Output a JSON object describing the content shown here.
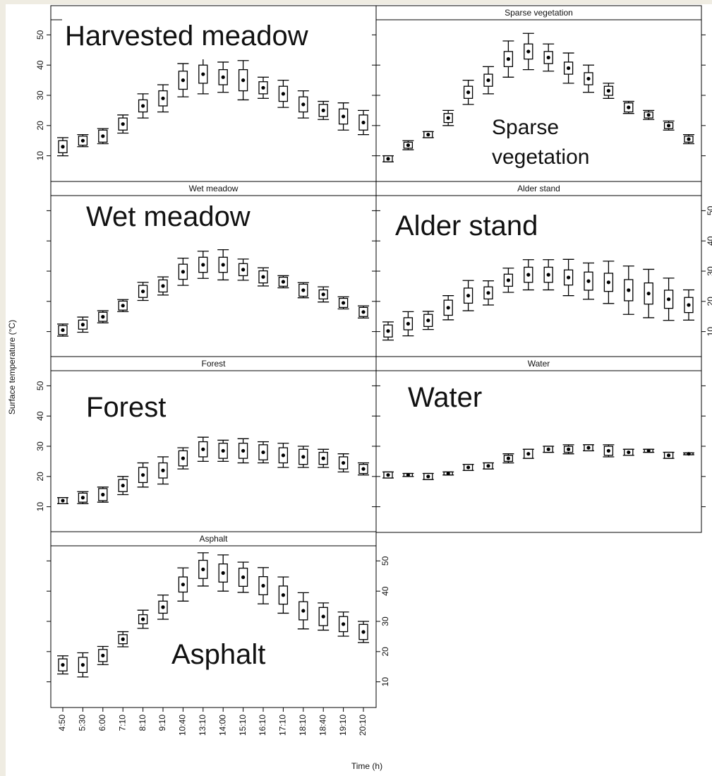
{
  "y_label": "Surface temperature (°C)",
  "x_label": "Time (h)",
  "chart_data": [
    {
      "type": "errorbar",
      "annotation": "Harvested meadow",
      "tick_labels": "left",
      "ylim": [
        1.5,
        55
      ],
      "yticks": [
        10,
        20,
        30,
        40,
        50
      ],
      "values": [
        13,
        15,
        16.5,
        20.5,
        26.5,
        29,
        35,
        37,
        36,
        35,
        32.5,
        30.5,
        27,
        25,
        23,
        21
      ],
      "box_errors": [
        2,
        1.5,
        2,
        2,
        2,
        2.5,
        3,
        3,
        2.5,
        3.5,
        2,
        2.5,
        2.5,
        2,
        2.5,
        2.5
      ],
      "errors": [
        3,
        2,
        2.5,
        3,
        4,
        4.5,
        5.5,
        6.5,
        5,
        6.5,
        3.5,
        4.5,
        4.5,
        3,
        4.5,
        4
      ]
    },
    {
      "type": "errorbar",
      "title": "Sparse vegetation",
      "annotation": [
        "Sparse",
        "vegetation"
      ],
      "tick_labels": "none",
      "ylim": [
        1.5,
        55
      ],
      "yticks": [
        10,
        20,
        30,
        40,
        50
      ],
      "values": [
        9,
        13.5,
        17,
        22.5,
        31,
        35,
        42,
        44.5,
        42.5,
        39,
        35.5,
        31.5,
        26,
        23.5,
        20,
        15.5
      ],
      "box_errors": [
        1,
        1,
        1,
        1.5,
        2,
        2,
        2.5,
        2.5,
        2,
        2,
        2,
        1.5,
        1.5,
        1,
        1,
        1
      ],
      "errors": [
        1,
        1.5,
        1,
        2.5,
        4,
        4.5,
        6,
        6,
        4.5,
        5,
        4.5,
        2.5,
        2,
        1.5,
        1.5,
        1.5
      ]
    },
    {
      "type": "errorbar",
      "title": "Wet meadow",
      "annotation": "Wet meadow",
      "tick_labels": "none",
      "ylim": [
        1.5,
        55
      ],
      "yticks": [
        10,
        20,
        30,
        40,
        50
      ],
      "values": [
        10.5,
        12.3,
        14.9,
        18.6,
        23.3,
        25.1,
        29.8,
        32.1,
        32.1,
        30.5,
        28.1,
        26.5,
        23.7,
        22.3,
        19.5,
        16.5
      ],
      "box_errors": [
        1.5,
        1.5,
        1.5,
        1.5,
        2,
        2,
        2.5,
        2.5,
        2.5,
        2,
        2,
        1.5,
        2,
        1.5,
        1.5,
        1.5
      ],
      "errors": [
        2,
        2.5,
        2,
        2,
        3,
        3,
        4.5,
        4.5,
        5,
        3.5,
        3,
        2,
        2.5,
        2.5,
        2,
        2
      ]
    },
    {
      "type": "errorbar",
      "title": "Alder stand",
      "annotation": "Alder stand",
      "tick_labels": "right",
      "ylim": [
        1.5,
        55
      ],
      "yticks": [
        10,
        20,
        30,
        40,
        50
      ],
      "values": [
        10.2,
        12.6,
        13.7,
        17.9,
        21.9,
        22.8,
        27,
        28.8,
        28.8,
        27.9,
        26.7,
        26.3,
        23.7,
        22.6,
        20.7,
        18.8
      ],
      "box_errors": [
        2,
        2,
        2,
        2.5,
        2.5,
        2,
        2,
        2.5,
        2.5,
        2.5,
        3,
        3,
        3.5,
        3.5,
        3,
        2.5
      ],
      "errors": [
        3,
        4,
        3,
        4,
        5,
        4,
        4,
        5,
        5,
        6,
        6,
        7,
        8,
        8,
        7,
        5
      ]
    },
    {
      "type": "errorbar",
      "title": "Forest",
      "annotation": "Forest",
      "tick_labels": "left",
      "ylim": [
        1.5,
        55
      ],
      "yticks": [
        10,
        20,
        30,
        40,
        50
      ],
      "values": [
        12,
        13,
        14,
        17,
        20.5,
        22,
        26,
        29,
        28.5,
        28.5,
        28,
        27,
        26.5,
        26,
        24.5,
        22.5
      ],
      "box_errors": [
        1,
        1.5,
        2,
        2,
        2.5,
        2.5,
        2.5,
        2.5,
        2.5,
        2.5,
        2.5,
        2.5,
        2.5,
        2,
        2,
        1.5
      ],
      "errors": [
        1,
        2,
        2.5,
        3,
        4,
        4.5,
        3.5,
        4,
        3.5,
        4,
        3.5,
        4,
        3.5,
        3,
        3,
        2
      ]
    },
    {
      "type": "errorbar",
      "title": "Water",
      "annotation": "Water",
      "tick_labels": "none",
      "ylim": [
        1.5,
        55
      ],
      "yticks": [
        10,
        20,
        30,
        40,
        50
      ],
      "values": [
        20.5,
        20.5,
        20,
        21,
        23,
        23.5,
        26,
        27.5,
        29,
        29,
        29.5,
        28.5,
        28,
        28.5,
        27,
        27.5
      ],
      "box_errors": [
        1,
        0.5,
        1,
        0.5,
        1,
        1,
        1,
        1.5,
        1,
        1,
        1,
        1.5,
        1,
        0.5,
        1,
        0.3
      ],
      "errors": [
        1,
        0.5,
        1,
        0.5,
        1,
        1,
        1.5,
        1.5,
        1,
        1.5,
        1,
        2,
        1,
        0.5,
        1,
        0.3
      ]
    },
    {
      "type": "errorbar",
      "title": "Asphalt",
      "annotation": "Asphalt",
      "tick_labels": "right",
      "ylim": [
        1.5,
        55
      ],
      "yticks": [
        10,
        20,
        30,
        40,
        50
      ],
      "categories": [
        "4:50",
        "5:30",
        "6:00",
        "7:10",
        "8:10",
        "9:10",
        "10:40",
        "13:10",
        "14:00",
        "15:10",
        "16:10",
        "17:10",
        "18:10",
        "18:40",
        "19:10",
        "20:10"
      ],
      "values": [
        15.6,
        15.6,
        18.7,
        24.1,
        30.7,
        34.7,
        42.2,
        47.2,
        46,
        44.6,
        41.8,
        38.7,
        33.5,
        31.6,
        29.1,
        26.5
      ],
      "box_errors": [
        2,
        2.5,
        2,
        1.5,
        1.5,
        2,
        2.5,
        3,
        3,
        3,
        3,
        3,
        3,
        3,
        2.5,
        2.5
      ],
      "errors": [
        3,
        4,
        3,
        2.5,
        3,
        4,
        5.5,
        5.5,
        6,
        5,
        6,
        6,
        6,
        4.5,
        4,
        3.5
      ]
    }
  ]
}
